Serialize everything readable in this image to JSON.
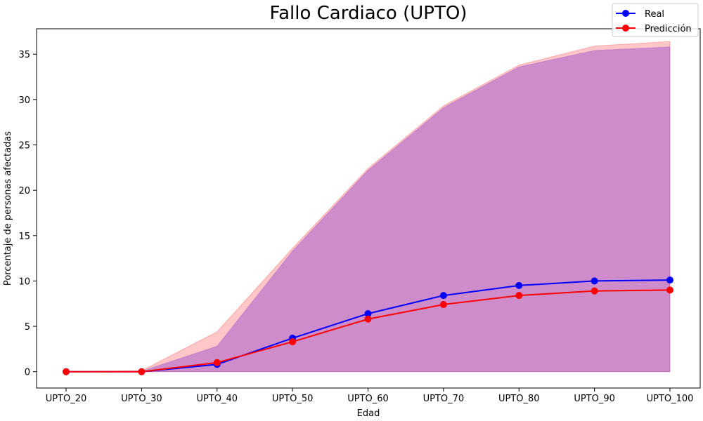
{
  "chart_data": {
    "type": "line",
    "title": "Fallo Cardiaco (UPTO)",
    "xlabel": "Edad",
    "ylabel": "Porcentaje de personas afectadas",
    "categories": [
      "UPTO_20",
      "UPTO_30",
      "UPTO_40",
      "UPTO_50",
      "UPTO_60",
      "UPTO_70",
      "UPTO_80",
      "UPTO_90",
      "UPTO_100"
    ],
    "ylim": [
      -1.8,
      37.8
    ],
    "yticks": [
      0,
      5,
      10,
      15,
      20,
      25,
      30,
      35
    ],
    "grid": false,
    "legend_position": "top-right",
    "series": [
      {
        "name": "Real",
        "color": "#0000ff",
        "values": [
          0.0,
          0.0,
          0.8,
          3.7,
          6.4,
          8.4,
          9.5,
          10.0,
          10.1
        ],
        "band_lower": [
          0.0,
          0.0,
          0.0,
          0.0,
          0.0,
          0.0,
          0.0,
          0.0,
          0.0
        ],
        "band_upper": [
          0.0,
          0.05,
          2.8,
          13.3,
          22.2,
          29.1,
          33.6,
          35.4,
          35.8
        ],
        "band_color": "#8b3fd0"
      },
      {
        "name": "Predicción",
        "color": "#ff0000",
        "values": [
          0.0,
          0.0,
          1.0,
          3.3,
          5.8,
          7.4,
          8.4,
          8.9,
          9.0
        ],
        "band_lower": [
          0.0,
          0.0,
          0.0,
          0.0,
          0.0,
          0.0,
          0.0,
          0.0,
          0.0
        ],
        "band_upper": [
          0.0,
          0.1,
          4.4,
          13.6,
          22.4,
          29.3,
          33.8,
          35.9,
          36.4
        ],
        "band_color": "#ff0000"
      }
    ]
  }
}
